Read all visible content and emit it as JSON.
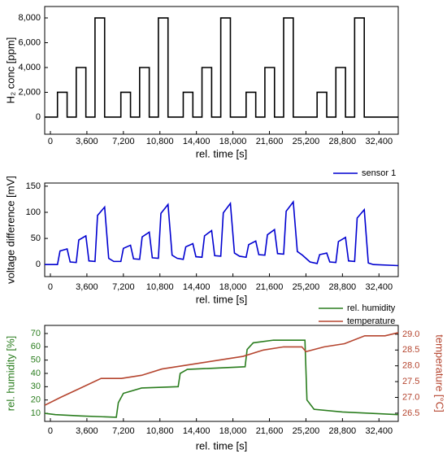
{
  "chart_data": [
    {
      "type": "line",
      "x_label": "rel. time [s]",
      "y_label": "H₂ conc [ppm]",
      "xlim": [
        -560,
        34300
      ],
      "ylim": [
        -1380,
        8920
      ],
      "xticks": [
        0,
        {
          "value": 3600,
          "label": "3,600"
        },
        {
          "value": 7200,
          "label": "7,200"
        },
        {
          "value": 10800,
          "label": "10,800"
        },
        {
          "value": 14400,
          "label": "14,400"
        },
        {
          "value": 18000,
          "label": "18,000"
        },
        {
          "value": 21600,
          "label": "21,600"
        },
        {
          "value": 25200,
          "label": "25,200"
        },
        {
          "value": 28800,
          "label": "28,800"
        },
        {
          "value": 32400,
          "label": "32,400"
        }
      ],
      "yticks": [
        0,
        {
          "value": 2000,
          "label": "2,000"
        },
        {
          "value": 4000,
          "label": "4,000"
        },
        {
          "value": 6000,
          "label": "6,000"
        },
        {
          "value": 8000,
          "label": "8,000"
        }
      ],
      "series": [
        {
          "color": "#000000",
          "x": [
            -560,
            700,
            700,
            1650,
            1650,
            2550,
            2550,
            3500,
            3500,
            4400,
            4400,
            5350,
            5350,
            6950,
            6950,
            7900,
            7900,
            8800,
            8800,
            9750,
            9750,
            10650,
            10650,
            11600,
            11600,
            13100,
            13100,
            14050,
            14050,
            14950,
            14950,
            15900,
            15900,
            16800,
            16800,
            17750,
            17750,
            19300,
            19300,
            20250,
            20250,
            21150,
            21150,
            22100,
            22100,
            23000,
            23000,
            23950,
            23950,
            26300,
            26300,
            27250,
            27250,
            28150,
            28150,
            29100,
            29100,
            30000,
            30000,
            30950,
            30950,
            34300
          ],
          "values": [
            0,
            0,
            2000,
            2000,
            0,
            0,
            4000,
            4000,
            0,
            0,
            8000,
            8000,
            0,
            0,
            2000,
            2000,
            0,
            0,
            4000,
            4000,
            0,
            0,
            8000,
            8000,
            0,
            0,
            2000,
            2000,
            0,
            0,
            4000,
            4000,
            0,
            0,
            8000,
            8000,
            0,
            0,
            2000,
            2000,
            0,
            0,
            4000,
            4000,
            0,
            0,
            8000,
            8000,
            0,
            0,
            2000,
            2000,
            0,
            0,
            4000,
            4000,
            0,
            0,
            8000,
            8000,
            0,
            0
          ]
        }
      ]
    },
    {
      "type": "line",
      "x_label": "rel. time [s]",
      "y_label": "voltage difference [mV]",
      "xlim": [
        -560,
        34300
      ],
      "ylim": [
        -23,
        156
      ],
      "xticks": [
        0,
        {
          "value": 3600,
          "label": "3,600"
        },
        {
          "value": 7200,
          "label": "7,200"
        },
        {
          "value": 10800,
          "label": "10,800"
        },
        {
          "value": 14400,
          "label": "14,400"
        },
        {
          "value": 18000,
          "label": "18,000"
        },
        {
          "value": 21600,
          "label": "21,600"
        },
        {
          "value": 25200,
          "label": "25,200"
        },
        {
          "value": 28800,
          "label": "28,800"
        },
        {
          "value": 32400,
          "label": "32,400"
        }
      ],
      "yticks": [
        0,
        50,
        100,
        150
      ],
      "series": [
        {
          "name": "sensor 1",
          "color": "#0000d0",
          "x": [
            -560,
            700,
            950,
            1650,
            1950,
            2550,
            2800,
            3500,
            3800,
            4400,
            4650,
            5350,
            5750,
            6250,
            6950,
            7200,
            7900,
            8200,
            8800,
            9050,
            9750,
            10050,
            10650,
            10900,
            11600,
            12000,
            12500,
            13100,
            13350,
            14050,
            14350,
            14950,
            15200,
            15900,
            16200,
            16800,
            17050,
            17750,
            18150,
            18650,
            19300,
            19550,
            20250,
            20550,
            21150,
            21400,
            22100,
            22400,
            23000,
            23250,
            23950,
            24350,
            24850,
            25600,
            26300,
            26550,
            27250,
            27550,
            28150,
            28400,
            29100,
            29400,
            30000,
            30250,
            30950,
            31350,
            31850,
            34300
          ],
          "values": [
            0,
            0,
            26,
            30,
            5,
            4,
            47,
            55,
            7,
            6,
            94,
            110,
            12,
            6,
            6,
            31,
            37,
            11,
            10,
            53,
            62,
            13,
            12,
            98,
            115,
            18,
            12,
            10,
            34,
            40,
            15,
            14,
            55,
            65,
            17,
            16,
            99,
            117,
            22,
            16,
            14,
            38,
            45,
            19,
            18,
            57,
            67,
            21,
            20,
            102,
            120,
            25,
            18,
            5,
            2,
            19,
            22,
            5,
            4,
            44,
            52,
            7,
            6,
            89,
            105,
            3,
            0,
            -2
          ]
        }
      ]
    },
    {
      "type": "line",
      "x_label": "rel. time [s]",
      "y_label": "rel. humidity [%]",
      "y2_label": "temperature [°C]",
      "xlim": [
        -560,
        34300
      ],
      "ylim": [
        3.9,
        76.1
      ],
      "y2lim": [
        26.24,
        29.28
      ],
      "xticks": [
        0,
        {
          "value": 3600,
          "label": "3,600"
        },
        {
          "value": 7200,
          "label": "7,200"
        },
        {
          "value": 10800,
          "label": "10,800"
        },
        {
          "value": 14400,
          "label": "14,400"
        },
        {
          "value": 18000,
          "label": "18,000"
        },
        {
          "value": 21600,
          "label": "21,600"
        },
        {
          "value": 25200,
          "label": "25,200"
        },
        {
          "value": 28800,
          "label": "28,800"
        },
        {
          "value": 32400,
          "label": "32,400"
        }
      ],
      "yticks": [
        10,
        20,
        30,
        40,
        50,
        60,
        70
      ],
      "y2ticks": [
        26.5,
        {
          "value": 27,
          "label": "27.0"
        },
        27.5,
        {
          "value": 28,
          "label": "28.0"
        },
        28.5,
        {
          "value": 29,
          "label": "29.0"
        }
      ],
      "series": [
        {
          "name": "rel. humidity",
          "color": "#2a7d1e",
          "x": [
            -560,
            500,
            3000,
            6500,
            6700,
            7200,
            9000,
            12600,
            12800,
            13500,
            19200,
            19400,
            20000,
            22000,
            25100,
            25300,
            26000,
            28800,
            34300
          ],
          "values": [
            10,
            9,
            8,
            7,
            18,
            25,
            29,
            30,
            40,
            43,
            45,
            58,
            63,
            65,
            65,
            20,
            13,
            11,
            9
          ]
        },
        {
          "name": "temperature",
          "color": "#b5452f",
          "axis": "y2",
          "x": [
            -560,
            1000,
            3000,
            5000,
            7000,
            9000,
            11000,
            13000,
            15000,
            17000,
            19000,
            21000,
            23000,
            24800,
            25200,
            27000,
            29000,
            31000,
            33000,
            34300
          ],
          "values": [
            26.75,
            27.0,
            27.3,
            27.6,
            27.6,
            27.7,
            27.9,
            28.0,
            28.1,
            28.2,
            28.3,
            28.5,
            28.6,
            28.6,
            28.45,
            28.6,
            28.7,
            28.95,
            28.95,
            29.05
          ]
        }
      ]
    }
  ]
}
